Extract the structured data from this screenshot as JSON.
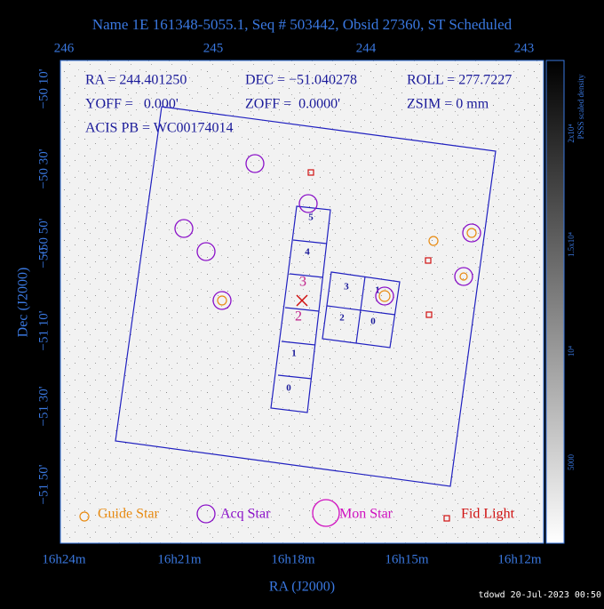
{
  "title": "Name 1E 161348-5055.1, Seq # 503442, Obsid 27360, ST Scheduled",
  "top_axis": {
    "ticks": [
      "246",
      "245",
      "244",
      "243"
    ]
  },
  "left_axis": {
    "ticks": [
      "−50 10'",
      "−50 30'",
      "−50 50'",
      "−50",
      "−51 10'",
      "−51 30'",
      "−51 50'"
    ]
  },
  "bottom_axis": {
    "ticks": [
      "16h24m",
      "16h21m",
      "16h18m",
      "16h15m",
      "16h12m"
    ]
  },
  "x_label": "RA (J2000)",
  "y_label": "Dec (J2000)",
  "colorbar": {
    "title": "PSSS scaled density",
    "ticks": [
      "2x10⁴",
      "1.5x10⁴",
      "10⁴",
      "5000"
    ]
  },
  "info": {
    "ra": "RA = 244.401250",
    "dec": "DEC = −51.040278",
    "roll": "ROLL = 277.7227",
    "yoff": "YOFF =   0.000'",
    "zoff": "ZOFF =  0.0000'",
    "zsim": "ZSIM = 0 mm",
    "acis_pb": "ACIS PB = WC00174014"
  },
  "chips": {
    "i_array": [
      "5",
      "4",
      "3",
      "2",
      "1",
      "0"
    ],
    "s_array": [
      "3",
      "1",
      "2",
      "0"
    ]
  },
  "legend": [
    "Guide Star",
    "Acq Star",
    "Mon Star",
    "Fid Light"
  ],
  "footer": "tdowd 20-Jul-2023 00:50"
}
